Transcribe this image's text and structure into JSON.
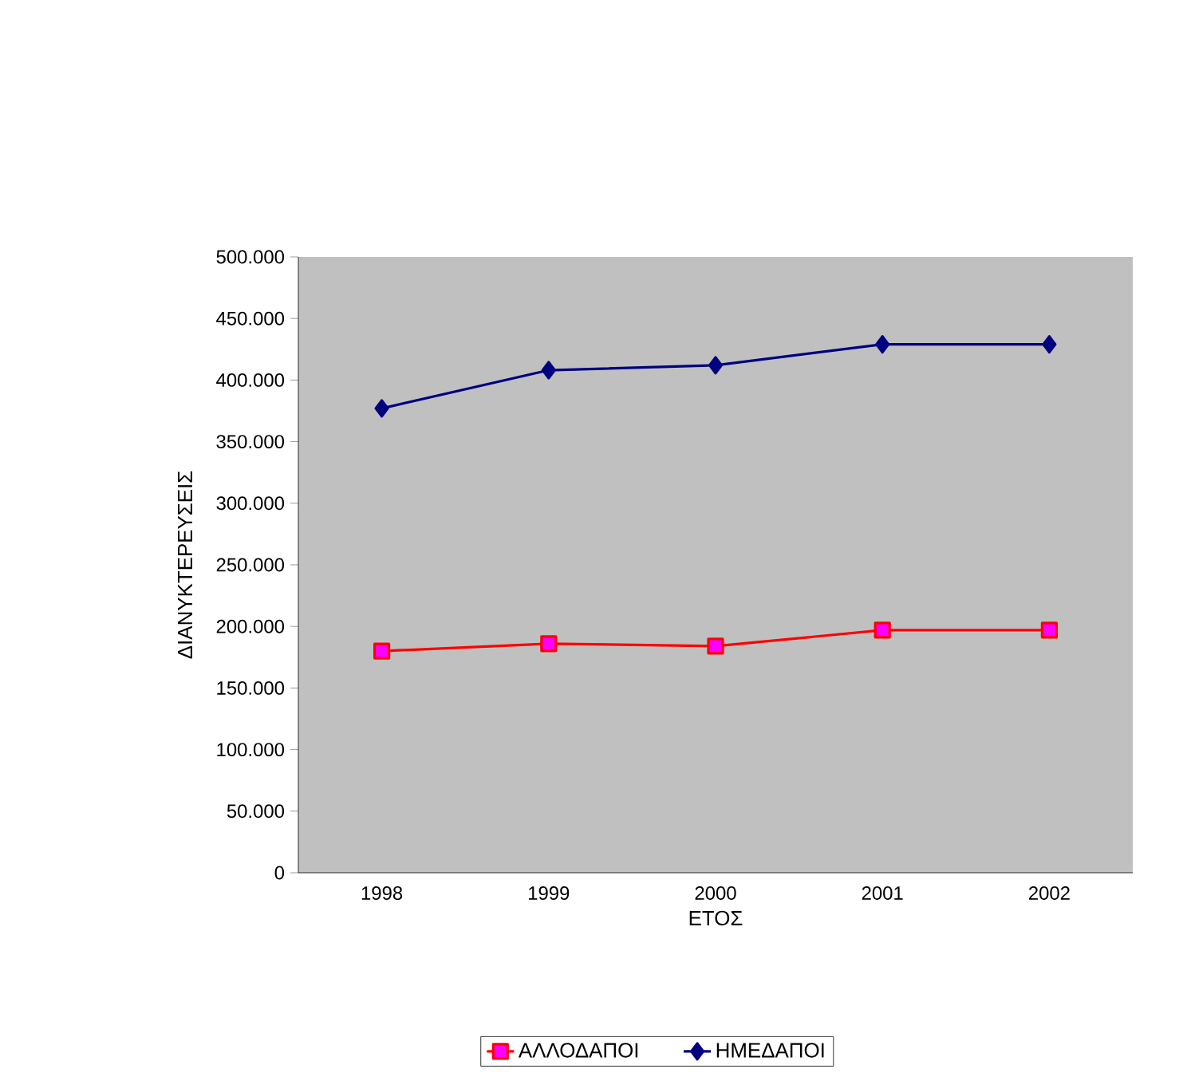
{
  "chart_data": {
    "type": "line",
    "xlabel": "ΕΤΟΣ",
    "ylabel": "ΔΙΑΝΥΚΤΕΡΕΥΣΕΙΣ",
    "categories": [
      "1998",
      "1999",
      "2000",
      "2001",
      "2002"
    ],
    "series": [
      {
        "name": "ΑΛΛΟΔΑΠΟΙ",
        "color": "#ff0000",
        "marker": "square",
        "values": [
          180000,
          186000,
          184000,
          197000,
          197000
        ]
      },
      {
        "name": "ΗΜΕΔΑΠΟΙ",
        "color": "#000080",
        "marker": "diamond",
        "values": [
          377000,
          408000,
          412000,
          429000,
          429000
        ]
      }
    ],
    "ylim": [
      0,
      500000
    ],
    "yticks": [
      0,
      {
        "value": 50000,
        "label": "50.000"
      },
      {
        "value": 100000,
        "label": "100.000"
      },
      {
        "value": 150000,
        "label": "150.000"
      },
      {
        "value": 200000,
        "label": "200.000"
      },
      {
        "value": 250000,
        "label": "250.000"
      },
      {
        "value": 300000,
        "label": "300.000"
      },
      {
        "value": 350000,
        "label": "350.000"
      },
      {
        "value": 400000,
        "label": "400.000"
      },
      {
        "value": 450000,
        "label": "450.000"
      },
      {
        "value": 500000,
        "label": "500.000"
      }
    ],
    "grid": false,
    "legend": "bottom",
    "line_style": "solid"
  }
}
